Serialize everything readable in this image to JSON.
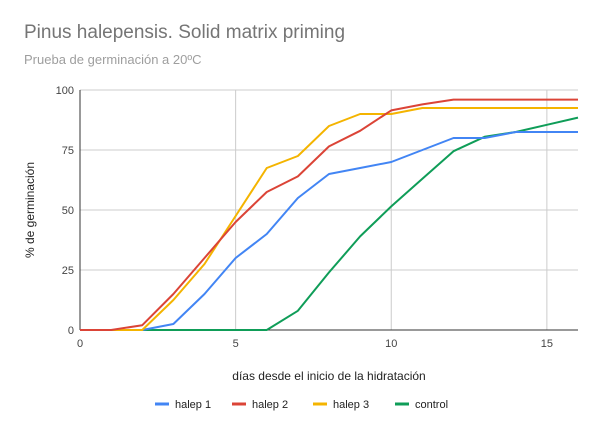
{
  "chart_data": {
    "type": "line",
    "title": "Pinus halepensis. Solid matrix priming",
    "subtitle": "Prueba de germinación a 20ºC",
    "xlabel": "días desde el inicio de la hidratación",
    "ylabel": "% de germinación",
    "xlim": [
      0,
      16
    ],
    "ylim": [
      0,
      100
    ],
    "xticks": [
      0,
      5,
      10,
      15
    ],
    "yticks": [
      0,
      25,
      50,
      75,
      100
    ],
    "grid": true,
    "legend": "bottom",
    "x": [
      0,
      1,
      2,
      3,
      4,
      5,
      6,
      7,
      8,
      9,
      10,
      11,
      12,
      13,
      14,
      15,
      16
    ],
    "series": [
      {
        "name": "halep 1",
        "color": "#4285f4",
        "values": [
          0,
          0,
          0,
          2.5,
          15,
          30,
          40,
          55,
          65,
          67.5,
          70,
          75,
          80,
          80,
          82.5,
          82.5,
          82.5
        ]
      },
      {
        "name": "halep 2",
        "color": "#db4437",
        "values": [
          0,
          0,
          2,
          15,
          30,
          45,
          57.5,
          64,
          76.5,
          83,
          91.5,
          94,
          96,
          96,
          96,
          96,
          96
        ]
      },
      {
        "name": "halep 3",
        "color": "#f4b400",
        "values": [
          0,
          0,
          0,
          12.5,
          27.5,
          47.5,
          67.5,
          72.5,
          85,
          90,
          90,
          92.5,
          92.5,
          92.5,
          92.5,
          92.5,
          92.5
        ]
      },
      {
        "name": "control",
        "color": "#0f9d58",
        "values": [
          0,
          0,
          0,
          0,
          0,
          0,
          0,
          8,
          24,
          39,
          51.5,
          63,
          74.5,
          80.5,
          82.5,
          85.5,
          88.5
        ]
      }
    ]
  }
}
